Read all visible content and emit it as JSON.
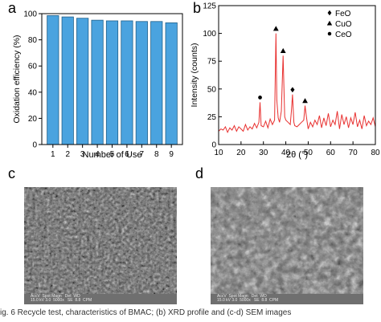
{
  "panel_labels": {
    "a": "a",
    "b": "b",
    "c": "c",
    "d": "d"
  },
  "chart_data": [
    {
      "panel": "a",
      "type": "bar",
      "categories": [
        "1",
        "2",
        "3",
        "4",
        "5",
        "6",
        "7",
        "8",
        "9"
      ],
      "values": [
        98.5,
        97.5,
        96.5,
        95.0,
        94.5,
        94.5,
        94.0,
        94.0,
        93.0
      ],
      "xlabel": "Number of Use",
      "ylabel": "Oxidation efficiency (%)",
      "ylim": [
        0,
        100
      ],
      "yticks": [
        0,
        20,
        40,
        60,
        80,
        100
      ],
      "bar_color": "#4aa3df",
      "bar_edge_color": "#1f5f8a",
      "grid": false
    },
    {
      "panel": "b",
      "type": "line",
      "xlabel": "2θ (°)",
      "ylabel": "Intensity (counts)",
      "xlim": [
        10,
        80
      ],
      "ylim": [
        0,
        125
      ],
      "xticks": [
        10,
        20,
        30,
        40,
        50,
        60,
        70,
        80
      ],
      "yticks": [
        0,
        25,
        50,
        75,
        100,
        125
      ],
      "line_color": "#e8302f",
      "grid": false,
      "legend_position": "top-right",
      "legend": [
        {
          "label": "FeO",
          "marker": "diamond"
        },
        {
          "label": "CuO",
          "marker": "triangle"
        },
        {
          "label": "CeO",
          "marker": "circle"
        }
      ],
      "peaks": [
        {
          "x": 28.5,
          "y": 38,
          "marker": "circle"
        },
        {
          "x": 35.6,
          "y": 100,
          "marker": "triangle"
        },
        {
          "x": 38.8,
          "y": 80,
          "marker": "triangle"
        },
        {
          "x": 43.0,
          "y": 45,
          "marker": "diamond"
        },
        {
          "x": 48.6,
          "y": 35,
          "marker": "triangle"
        }
      ],
      "series": [
        {
          "x": [
            10,
            11,
            12,
            13,
            14,
            15,
            16,
            17,
            18,
            19,
            20,
            21,
            22,
            23,
            24,
            25,
            26,
            27,
            28,
            28.5,
            29,
            30,
            31,
            32,
            33,
            34,
            35,
            35.6,
            36,
            36.6,
            37.2,
            38,
            38.8,
            39.5,
            40,
            41,
            42,
            42.5,
            43,
            43.6,
            44,
            45,
            46,
            47,
            48,
            48.6,
            49.2,
            50,
            51,
            52,
            53,
            54,
            55,
            56,
            57,
            58,
            59,
            60,
            61,
            62,
            63,
            64,
            65,
            66,
            67,
            68,
            69,
            70,
            71,
            72,
            73,
            74,
            75,
            76,
            77,
            78,
            79,
            80
          ],
          "y": [
            12,
            14,
            13,
            16,
            11,
            15,
            13,
            17,
            12,
            16,
            14,
            12,
            18,
            13,
            16,
            14,
            19,
            15,
            20,
            38,
            17,
            16,
            21,
            15,
            23,
            18,
            22,
            100,
            40,
            24,
            20,
            30,
            80,
            25,
            22,
            20,
            18,
            30,
            45,
            20,
            17,
            16,
            18,
            20,
            22,
            35,
            25,
            14,
            20,
            16,
            22,
            18,
            26,
            15,
            24,
            17,
            28,
            16,
            22,
            18,
            30,
            14,
            27,
            18,
            25,
            15,
            24,
            18,
            29,
            16,
            22,
            14,
            26,
            17,
            21,
            18,
            24,
            16
          ]
        }
      ]
    }
  ],
  "sem_images": {
    "c": {
      "footer_text": "AccV  Spot Magn   Det  WD\n15.0 kV 3.0  5000x   SE  8.8  CPM"
    },
    "d": {
      "footer_text": "AccV  Spot Magn   Det  WD\n15.0 kV 3.0  5000x   SE  8.8  CPM"
    }
  },
  "caption": "ig. 6 Recycle test, characteristics of BMAC; (b) XRD profile and (c-d) SEM images"
}
